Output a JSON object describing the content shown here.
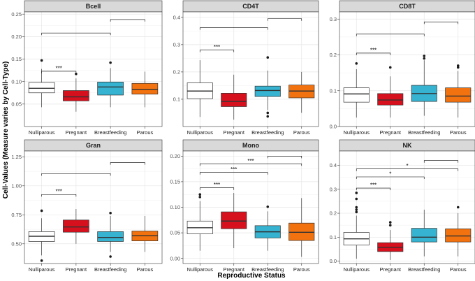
{
  "chart_data": {
    "type": "boxplot",
    "xlabel": "Reproductive Status",
    "ylabel": "Cell-Values (Measure varies by Cell-Type)",
    "categories": [
      "Nulliparous",
      "Pregnant",
      "Breastfeeding",
      "Parous"
    ],
    "colors": [
      "#ffffff",
      "#d7101e",
      "#35b3d1",
      "#f2720f"
    ],
    "panels": [
      {
        "title": "Bcell",
        "ylim": [
          0.0,
          0.255
        ],
        "yticks": [
          0.05,
          0.1,
          0.15,
          0.2,
          0.25
        ],
        "ytick_labels": [
          "0.05",
          "0.10",
          "0.15",
          "0.20",
          "0.25"
        ],
        "boxes": [
          {
            "q1": 0.075,
            "median": 0.085,
            "q3": 0.098,
            "wlo": 0.043,
            "whi": 0.128,
            "outliers": [
              0.147
            ]
          },
          {
            "q1": 0.057,
            "median": 0.066,
            "q3": 0.08,
            "wlo": 0.033,
            "whi": 0.107,
            "outliers": [
              0.117
            ]
          },
          {
            "q1": 0.07,
            "median": 0.088,
            "q3": 0.099,
            "wlo": 0.043,
            "whi": 0.13,
            "outliers": [
              0.142
            ]
          },
          {
            "q1": 0.072,
            "median": 0.082,
            "q3": 0.096,
            "wlo": 0.043,
            "whi": 0.122,
            "outliers": []
          }
        ],
        "brackets": [
          {
            "from": 0,
            "to": 1,
            "y": 0.123,
            "label": "***"
          },
          {
            "from": 0,
            "to": 2,
            "y": 0.208,
            "label": ""
          },
          {
            "from": 2,
            "to": 3,
            "y": 0.238,
            "label": ""
          }
        ]
      },
      {
        "title": "CD4T",
        "ylim": [
          0.0,
          0.42
        ],
        "yticks": [
          0.1,
          0.2,
          0.3,
          0.4
        ],
        "ytick_labels": [
          "0.1",
          "0.2",
          "0.3",
          "0.4"
        ],
        "boxes": [
          {
            "q1": 0.102,
            "median": 0.13,
            "q3": 0.16,
            "wlo": 0.035,
            "whi": 0.243,
            "outliers": []
          },
          {
            "q1": 0.073,
            "median": 0.092,
            "q3": 0.122,
            "wlo": 0.025,
            "whi": 0.19,
            "outliers": []
          },
          {
            "q1": 0.11,
            "median": 0.132,
            "q3": 0.148,
            "wlo": 0.06,
            "whi": 0.205,
            "outliers": [
              0.253,
              0.05,
              0.037
            ]
          },
          {
            "q1": 0.105,
            "median": 0.13,
            "q3": 0.152,
            "wlo": 0.05,
            "whi": 0.2,
            "outliers": []
          }
        ],
        "brackets": [
          {
            "from": 0,
            "to": 1,
            "y": 0.28,
            "label": "***"
          },
          {
            "from": 0,
            "to": 2,
            "y": 0.362,
            "label": ""
          },
          {
            "from": 2,
            "to": 3,
            "y": 0.395,
            "label": ""
          }
        ]
      },
      {
        "title": "CD8T",
        "ylim": [
          0.0,
          0.32
        ],
        "yticks": [
          0.0,
          0.1,
          0.2,
          0.3
        ],
        "ytick_labels": [
          "0.0",
          "0.1",
          "0.2",
          "0.3"
        ],
        "boxes": [
          {
            "q1": 0.068,
            "median": 0.091,
            "q3": 0.108,
            "wlo": 0.025,
            "whi": 0.16,
            "outliers": [
              0.176
            ]
          },
          {
            "q1": 0.06,
            "median": 0.074,
            "q3": 0.092,
            "wlo": 0.025,
            "whi": 0.14,
            "outliers": [
              0.165
            ]
          },
          {
            "q1": 0.07,
            "median": 0.092,
            "q3": 0.115,
            "wlo": 0.03,
            "whi": 0.185,
            "outliers": [
              0.197,
              0.19
            ]
          },
          {
            "q1": 0.068,
            "median": 0.085,
            "q3": 0.108,
            "wlo": 0.025,
            "whi": 0.155,
            "outliers": [
              0.17,
              0.165
            ]
          }
        ],
        "brackets": [
          {
            "from": 0,
            "to": 1,
            "y": 0.205,
            "label": "***"
          },
          {
            "from": 0,
            "to": 2,
            "y": 0.258,
            "label": ""
          },
          {
            "from": 2,
            "to": 3,
            "y": 0.292,
            "label": ""
          }
        ]
      },
      {
        "title": "Gran",
        "ylim": [
          0.33,
          1.3
        ],
        "yticks": [
          0.5,
          0.75,
          1.0,
          1.25
        ],
        "ytick_labels": [
          "0.50",
          "0.75",
          "1.00",
          "1.25"
        ],
        "boxes": [
          {
            "q1": 0.52,
            "median": 0.565,
            "q3": 0.605,
            "wlo": 0.4,
            "whi": 0.72,
            "outliers": [
              0.785,
              0.355
            ]
          },
          {
            "q1": 0.6,
            "median": 0.645,
            "q3": 0.705,
            "wlo": 0.5,
            "whi": 0.8,
            "outliers": []
          },
          {
            "q1": 0.52,
            "median": 0.555,
            "q3": 0.605,
            "wlo": 0.43,
            "whi": 0.74,
            "outliers": [
              0.765,
              0.39
            ]
          },
          {
            "q1": 0.525,
            "median": 0.57,
            "q3": 0.61,
            "wlo": 0.43,
            "whi": 0.74,
            "outliers": []
          }
        ],
        "brackets": [
          {
            "from": 0,
            "to": 1,
            "y": 0.925,
            "label": "***"
          },
          {
            "from": 0,
            "to": 2,
            "y": 1.105,
            "label": ""
          },
          {
            "from": 2,
            "to": 3,
            "y": 1.2,
            "label": ""
          }
        ]
      },
      {
        "title": "Mono",
        "ylim": [
          -0.01,
          0.21
        ],
        "yticks": [
          0.0,
          0.05,
          0.1,
          0.15,
          0.2
        ],
        "ytick_labels": [
          "0.00",
          "0.05",
          "0.10",
          "0.15",
          "0.20"
        ],
        "boxes": [
          {
            "q1": 0.048,
            "median": 0.06,
            "q3": 0.073,
            "wlo": 0.015,
            "whi": 0.112,
            "outliers": [
              0.125,
              0.12
            ]
          },
          {
            "q1": 0.058,
            "median": 0.073,
            "q3": 0.091,
            "wlo": 0.02,
            "whi": 0.128,
            "outliers": []
          },
          {
            "q1": 0.04,
            "median": 0.052,
            "q3": 0.064,
            "wlo": 0.015,
            "whi": 0.092,
            "outliers": [
              0.101
            ]
          },
          {
            "q1": 0.035,
            "median": 0.051,
            "q3": 0.069,
            "wlo": 0.003,
            "whi": 0.118,
            "outliers": []
          }
        ],
        "brackets": [
          {
            "from": 0,
            "to": 1,
            "y": 0.138,
            "label": "***"
          },
          {
            "from": 0,
            "to": 2,
            "y": 0.168,
            "label": "***"
          },
          {
            "from": 0,
            "to": 3,
            "y": 0.185,
            "label": "***"
          },
          {
            "from": 2,
            "to": 3,
            "y": 0.2,
            "label": ""
          }
        ]
      },
      {
        "title": "NK",
        "ylim": [
          -0.01,
          0.46
        ],
        "yticks": [
          0.0,
          0.1,
          0.2,
          0.3,
          0.4
        ],
        "ytick_labels": [
          "0.0",
          "0.1",
          "0.2",
          "0.3",
          "0.4"
        ],
        "boxes": [
          {
            "q1": 0.067,
            "median": 0.093,
            "q3": 0.12,
            "wlo": 0.01,
            "whi": 0.19,
            "outliers": [
              0.285,
              0.26,
              0.225,
              0.215,
              0.205
            ]
          },
          {
            "q1": 0.04,
            "median": 0.058,
            "q3": 0.077,
            "wlo": 0.005,
            "whi": 0.13,
            "outliers": [
              0.162,
              0.15
            ]
          },
          {
            "q1": 0.08,
            "median": 0.1,
            "q3": 0.137,
            "wlo": 0.02,
            "whi": 0.215,
            "outliers": []
          },
          {
            "q1": 0.08,
            "median": 0.105,
            "q3": 0.135,
            "wlo": 0.02,
            "whi": 0.2,
            "outliers": [
              0.225
            ]
          }
        ],
        "brackets": [
          {
            "from": 0,
            "to": 1,
            "y": 0.305,
            "label": "***"
          },
          {
            "from": 0,
            "to": 2,
            "y": 0.352,
            "label": "*"
          },
          {
            "from": 0,
            "to": 3,
            "y": 0.385,
            "label": "*"
          },
          {
            "from": 2,
            "to": 3,
            "y": 0.42,
            "label": ""
          }
        ]
      }
    ]
  }
}
